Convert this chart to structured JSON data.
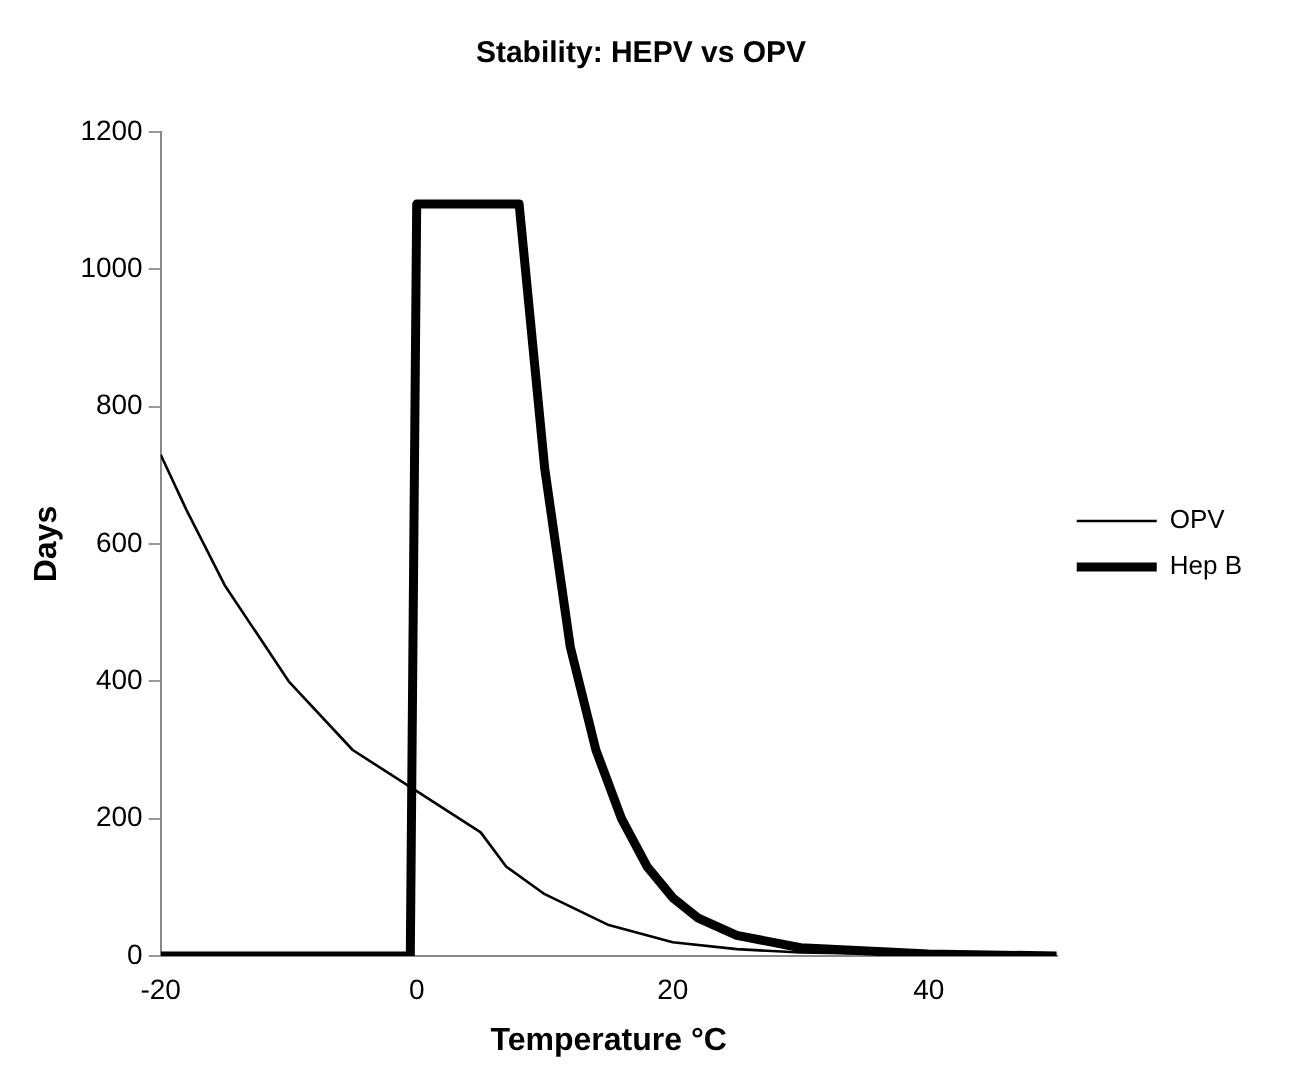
{
  "chart_data": {
    "type": "line",
    "title": "Stability: HEPV vs OPV",
    "xlabel": "Temperature °C",
    "ylabel": "Days",
    "xlim": [
      -20,
      50
    ],
    "xticks": [
      -20,
      0,
      20,
      40
    ],
    "ylim": [
      0,
      1200
    ],
    "yticks": [
      0,
      200,
      400,
      600,
      800,
      1000,
      1200
    ],
    "grid": false,
    "legend": "right",
    "marker": "none",
    "line_style": "solid",
    "series": [
      {
        "name": "OPV",
        "color": "#000000",
        "x": [
          -20,
          -18,
          -15,
          -10,
          -5,
          0,
          5,
          7,
          10,
          15,
          20,
          25,
          30,
          40,
          50
        ],
        "values": [
          730,
          650,
          540,
          400,
          300,
          240,
          180,
          130,
          90,
          45,
          20,
          10,
          5,
          2,
          0
        ]
      },
      {
        "name": "Hep B",
        "color": "#000000",
        "x": [
          -20,
          -0.5,
          0,
          8,
          10,
          12,
          14,
          16,
          18,
          20,
          22,
          25,
          30,
          40,
          50
        ],
        "values": [
          0,
          0,
          1095,
          1095,
          710,
          450,
          300,
          200,
          130,
          85,
          55,
          30,
          12,
          3,
          0
        ]
      }
    ]
  }
}
